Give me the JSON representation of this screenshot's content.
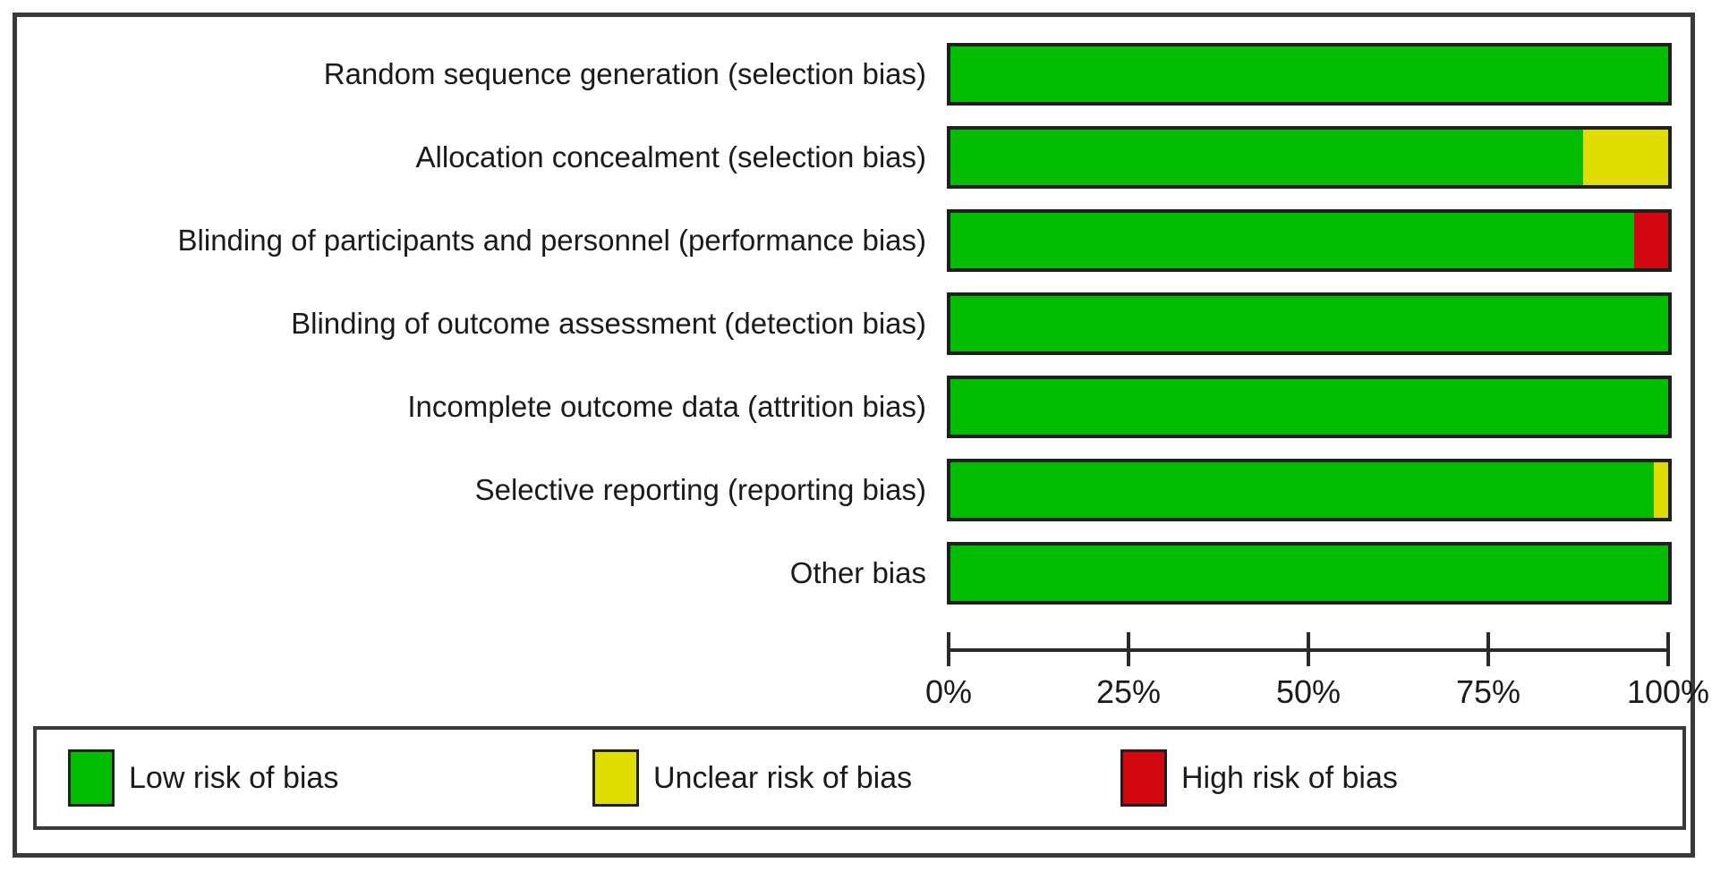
{
  "chart_data": {
    "type": "bar",
    "subtype": "horizontal-stacked-percentage",
    "title": "",
    "xlabel": "",
    "ylabel": "",
    "xlim": [
      0,
      100
    ],
    "grid": false,
    "legend_position": "bottom",
    "categories": [
      "Random sequence generation (selection bias)",
      "Allocation concealment (selection bias)",
      "Blinding of participants and personnel (performance bias)",
      "Blinding of outcome assessment (detection bias)",
      "Incomplete outcome data (attrition bias)",
      "Selective reporting (reporting bias)",
      "Other bias"
    ],
    "series": [
      {
        "name": "Low risk of bias",
        "color": "#02bd02",
        "values": [
          100,
          88.2,
          95.3,
          100,
          100,
          98,
          100
        ]
      },
      {
        "name": "Unclear risk of bias",
        "color": "#e0dd02",
        "values": [
          0,
          11.8,
          0,
          0,
          0,
          2,
          0
        ]
      },
      {
        "name": "High risk of bias",
        "color": "#d2070f",
        "values": [
          0,
          0,
          4.7,
          0,
          0,
          0,
          0
        ]
      }
    ],
    "x_tick_labels": [
      "0%",
      "25%",
      "50%",
      "75%",
      "100%"
    ],
    "x_tick_values": [
      0,
      25,
      50,
      75,
      100
    ]
  }
}
